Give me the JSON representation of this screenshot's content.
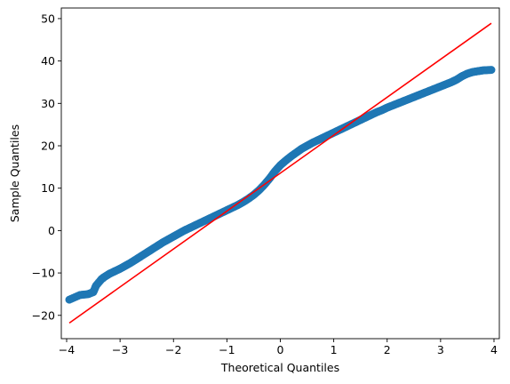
{
  "chart_data": {
    "type": "scatter",
    "title": "",
    "xlabel": "Theoretical Quantiles",
    "ylabel": "Sample Quantiles",
    "xlim": [
      -4.1,
      4.1
    ],
    "ylim": [
      -25.5,
      52.5
    ],
    "xticks": [
      -4,
      -3,
      -2,
      -1,
      0,
      1,
      2,
      3,
      4
    ],
    "xtick_labels": [
      "−4",
      "−3",
      "−2",
      "−1",
      "0",
      "1",
      "2",
      "3",
      "4"
    ],
    "yticks": [
      -20,
      -10,
      0,
      10,
      20,
      30,
      40,
      50
    ],
    "ytick_labels": [
      "−20",
      "−10",
      "0",
      "10",
      "20",
      "30",
      "40",
      "50"
    ],
    "grid": false,
    "series": [
      {
        "kind": "scatter",
        "color": "#1f77b4",
        "x": [
          -3.95,
          -3.75,
          -3.6,
          -3.5,
          -3.45,
          -3.35,
          -3.3,
          -3.2,
          -3.1,
          -3.0,
          -2.9,
          -2.8,
          -2.7,
          -2.6,
          -2.5,
          -2.4,
          -2.3,
          -2.2,
          -2.1,
          -2.0,
          -1.9,
          -1.8,
          -1.7,
          -1.6,
          -1.5,
          -1.4,
          -1.3,
          -1.2,
          -1.1,
          -1.0,
          -0.9,
          -0.8,
          -0.7,
          -0.6,
          -0.5,
          -0.4,
          -0.3,
          -0.2,
          -0.1,
          0.0,
          0.1,
          0.2,
          0.3,
          0.4,
          0.5,
          0.6,
          0.7,
          0.8,
          0.9,
          1.0,
          1.1,
          1.2,
          1.3,
          1.4,
          1.5,
          1.6,
          1.7,
          1.8,
          1.9,
          2.0,
          2.1,
          2.2,
          2.3,
          2.4,
          2.5,
          2.6,
          2.7,
          2.8,
          2.9,
          3.0,
          3.1,
          3.2,
          3.3,
          3.4,
          3.5,
          3.6,
          3.7,
          3.8,
          3.95
        ],
        "y": [
          -16.3,
          -15.2,
          -15.0,
          -14.5,
          -13.0,
          -11.5,
          -11.0,
          -10.2,
          -9.6,
          -9.0,
          -8.3,
          -7.6,
          -6.8,
          -6.0,
          -5.2,
          -4.4,
          -3.6,
          -2.8,
          -2.1,
          -1.4,
          -0.7,
          0.0,
          0.6,
          1.2,
          1.8,
          2.4,
          3.0,
          3.6,
          4.2,
          4.8,
          5.4,
          6.0,
          6.7,
          7.5,
          8.4,
          9.5,
          10.8,
          12.3,
          14.0,
          15.4,
          16.5,
          17.5,
          18.4,
          19.3,
          20.0,
          20.7,
          21.3,
          21.9,
          22.5,
          23.1,
          23.7,
          24.3,
          24.9,
          25.5,
          26.1,
          26.7,
          27.3,
          27.9,
          28.4,
          29.0,
          29.5,
          30.0,
          30.5,
          31.0,
          31.5,
          32.0,
          32.5,
          33.0,
          33.5,
          34.0,
          34.5,
          35.0,
          35.6,
          36.4,
          37.0,
          37.4,
          37.6,
          37.8,
          37.9
        ]
      },
      {
        "kind": "line",
        "color": "#ff0000",
        "x": [
          -3.95,
          3.95
        ],
        "y": [
          -21.8,
          48.9
        ]
      }
    ]
  }
}
